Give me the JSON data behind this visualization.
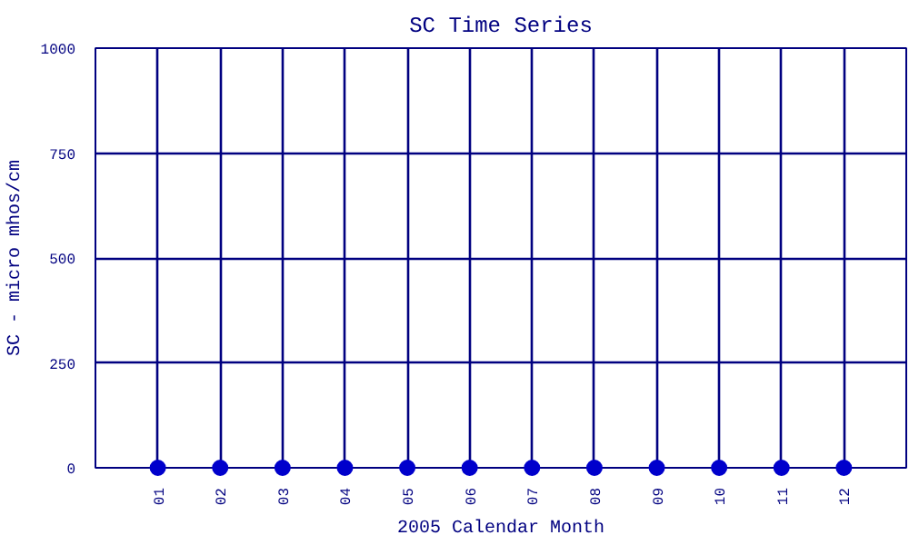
{
  "chart_data": {
    "type": "scatter",
    "title": "SC Time Series",
    "xlabel": "2005 Calendar Month",
    "ylabel": "SC - micro mhos/cm",
    "categories": [
      "01",
      "02",
      "03",
      "04",
      "05",
      "06",
      "07",
      "08",
      "09",
      "10",
      "11",
      "12"
    ],
    "series": [
      {
        "color": "#0000cc",
        "values": [
          0,
          0,
          0,
          0,
          0,
          0,
          0,
          0,
          0,
          0,
          0,
          0
        ]
      }
    ],
    "ylim": [
      0,
      1000
    ],
    "yticks": [
      0,
      250,
      500,
      750,
      1000
    ],
    "grid": true,
    "marker": "circle"
  }
}
